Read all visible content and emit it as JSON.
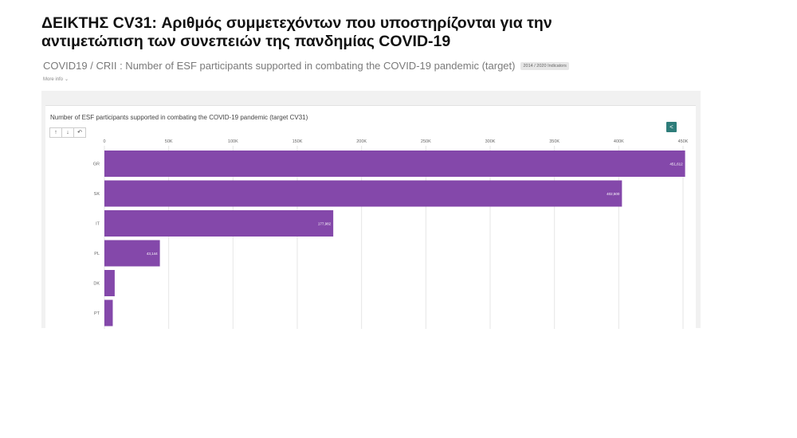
{
  "header": {
    "title_line1": "ΔΕΙΚΤΗΣ CV31: Αριθμός συμμετεχόντων  που υποστηρίζονται για την",
    "title_line2": "αντιμετώπιση των συνεπειών της πανδημίας COVID-19",
    "subtitle": "COVID19 / CRII : Number of ESF participants supported in combating the COVID-19 pandemic (target)",
    "badge": "2014 / 2020 Indicators",
    "more_info": "More info",
    "more_info_icon": "chevron-down-icon"
  },
  "toolbar": {
    "sort_asc_label": "↑",
    "sort_desc_label": "↓",
    "reset_label": "↶",
    "share_icon": "share-icon"
  },
  "colors": {
    "bar": "#8448aa",
    "grid": "#e6e6e6",
    "share_button": "#2e7d7a"
  },
  "chart_data": {
    "type": "bar",
    "orientation": "horizontal",
    "title": "Number of ESF participants supported in combating the COVID-19 pandemic (target CV31)",
    "categories": [
      "GR",
      "SK",
      "IT",
      "PL",
      "DK",
      "PT"
    ],
    "values": [
      451612,
      402500,
      177982,
      43144,
      8000,
      6500
    ],
    "value_labels": [
      "451,612",
      "402,500",
      "177,982",
      "43,144",
      "",
      ""
    ],
    "xlim": [
      0,
      450000
    ],
    "x_ticks": [
      0,
      50000,
      100000,
      150000,
      200000,
      250000,
      300000,
      350000,
      400000,
      450000
    ],
    "x_tick_labels": [
      "0",
      "50K",
      "100K",
      "150K",
      "200K",
      "250K",
      "300K",
      "350K",
      "400K",
      "450K"
    ],
    "grid": true,
    "xlabel": "",
    "ylabel": ""
  }
}
